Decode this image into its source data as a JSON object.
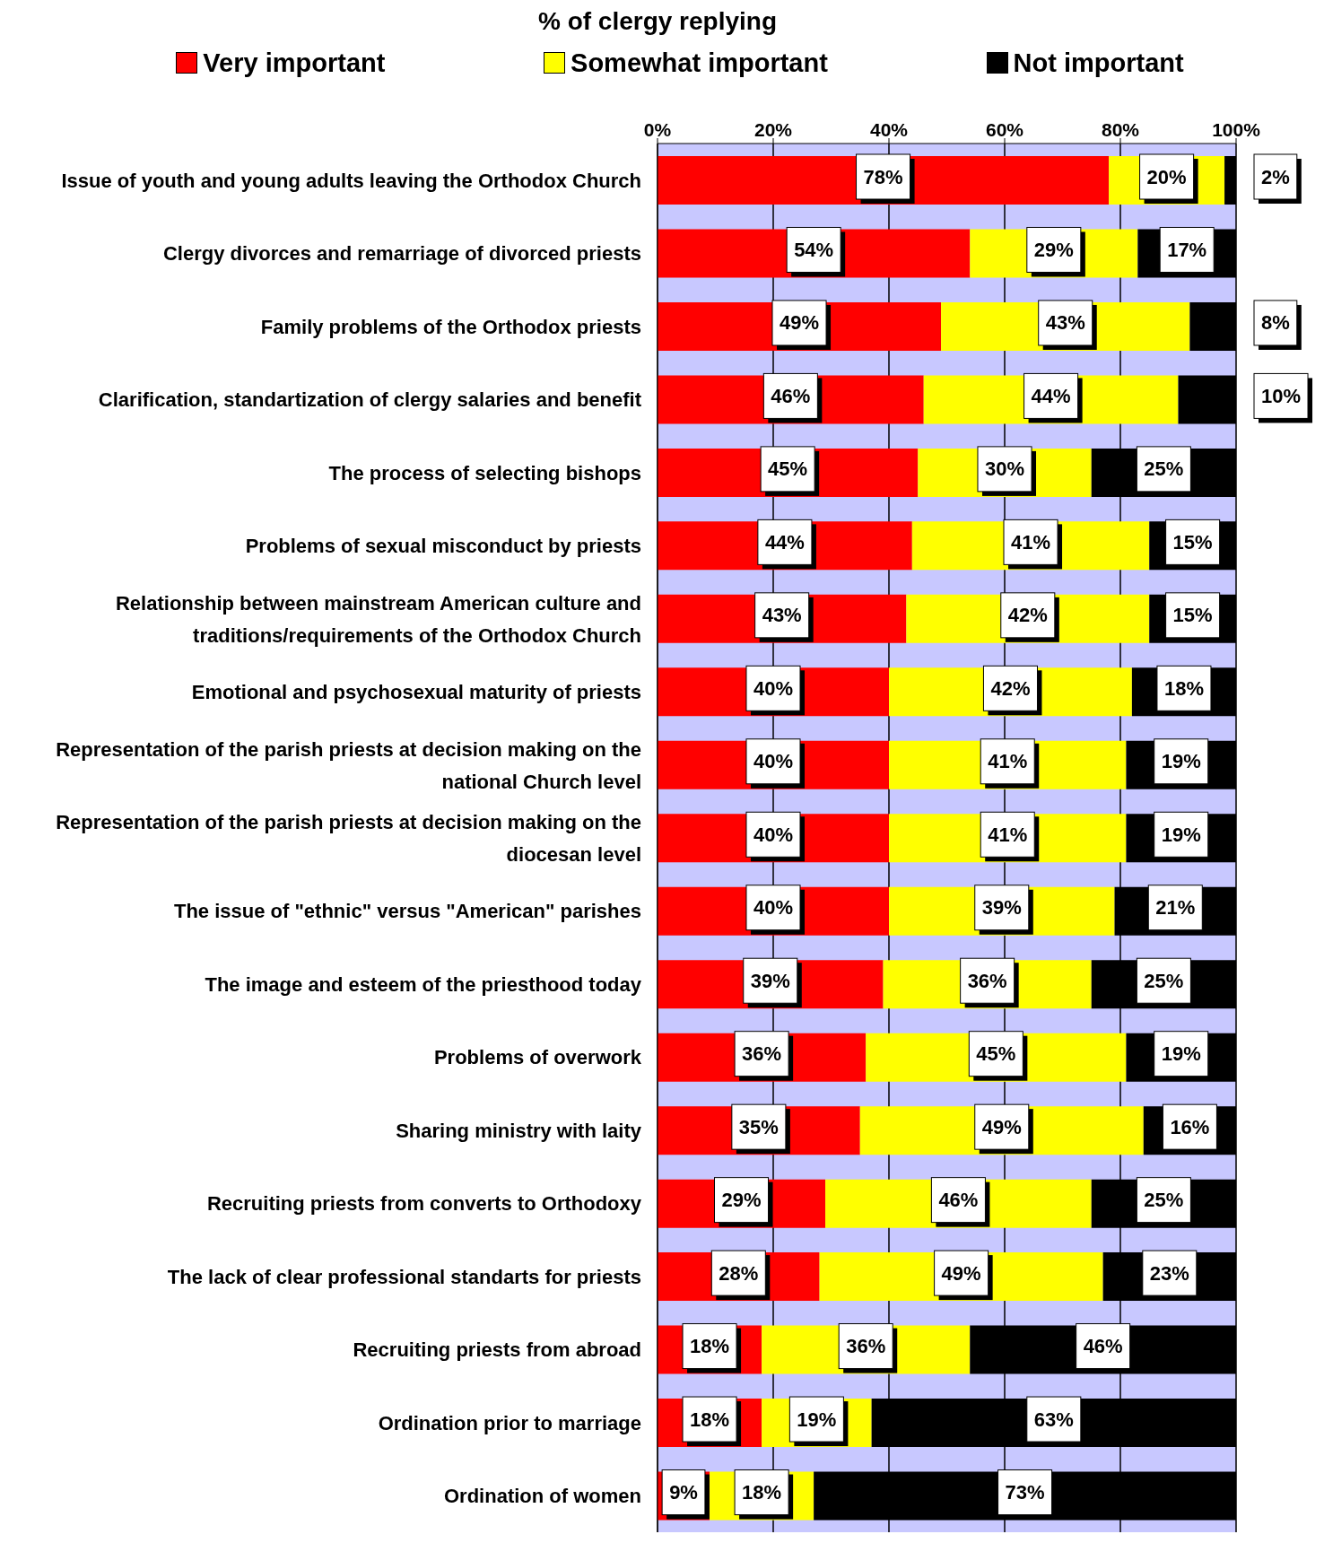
{
  "chart_data": {
    "type": "bar",
    "orientation": "horizontal",
    "stacked": true,
    "title": "% of clergy replying",
    "legend": "top",
    "grid": "x",
    "data_labels": true,
    "categories": [
      "Issue of youth and young adults leaving the Orthodox Church",
      "Clergy divorces and remarriage of divorced priests",
      "Family problems of the Orthodox priests",
      "Clarification, standartization of clergy salaries and benefit",
      "The process of selecting bishops",
      "Problems of sexual misconduct by priests",
      "Relationship between mainstream American culture and traditions/requirements of the Orthodox Church",
      "Emotional and psychosexual maturity of priests",
      "Representation of the parish priests at decision making on the national Church level",
      "Representation of the parish priests at decision making on the diocesan level",
      "The issue of \"ethnic\" versus \"American\" parishes",
      "The image and esteem of the priesthood today",
      "Problems of overwork",
      "Sharing ministry with laity",
      "Recruiting priests from converts to Orthodoxy",
      "The lack of clear professional standarts for priests",
      "Recruiting priests from abroad",
      "Ordination prior to marriage",
      "Ordination of women"
    ],
    "xlim": [
      0,
      100
    ],
    "xticks": [
      {
        "value": 0,
        "label": "0%"
      },
      {
        "value": 20,
        "label": "20%"
      },
      {
        "value": 40,
        "label": "40%"
      },
      {
        "value": 60,
        "label": "60%"
      },
      {
        "value": 80,
        "label": "80%"
      },
      {
        "value": 100,
        "label": "100%"
      }
    ],
    "series": [
      {
        "name": "Very important",
        "color": "#ff0000",
        "values": [
          78,
          54,
          49,
          46,
          45,
          44,
          43,
          40,
          40,
          40,
          40,
          39,
          36,
          35,
          29,
          28,
          18,
          18,
          9
        ],
        "value_labels": [
          "78%",
          "54%",
          "49%",
          "46%",
          "45%",
          "44%",
          "43%",
          "40%",
          "40%",
          "40%",
          "40%",
          "39%",
          "36%",
          "35%",
          "29%",
          "28%",
          "18%",
          "18%",
          "9%"
        ]
      },
      {
        "name": "Somewhat important",
        "color": "#ffff00",
        "values": [
          20,
          29,
          43,
          44,
          30,
          41,
          42,
          42,
          41,
          41,
          39,
          36,
          45,
          49,
          46,
          49,
          36,
          19,
          18
        ],
        "value_labels": [
          "20%",
          "29%",
          "43%",
          "44%",
          "30%",
          "41%",
          "42%",
          "42%",
          "41%",
          "41%",
          "39%",
          "36%",
          "45%",
          "49%",
          "46%",
          "49%",
          "36%",
          "19%",
          "18%"
        ]
      },
      {
        "name": "Not important",
        "color": "#000000",
        "values": [
          2,
          17,
          8,
          10,
          25,
          15,
          15,
          18,
          19,
          19,
          21,
          25,
          19,
          16,
          25,
          23,
          46,
          63,
          73
        ],
        "value_labels": [
          "2%",
          "17%",
          "8%",
          "10%",
          "25%",
          "15%",
          "15%",
          "18%",
          "19%",
          "19%",
          "21%",
          "25%",
          "19%",
          "16%",
          "25%",
          "23%",
          "46%",
          "63%",
          "73%"
        ]
      }
    ]
  }
}
